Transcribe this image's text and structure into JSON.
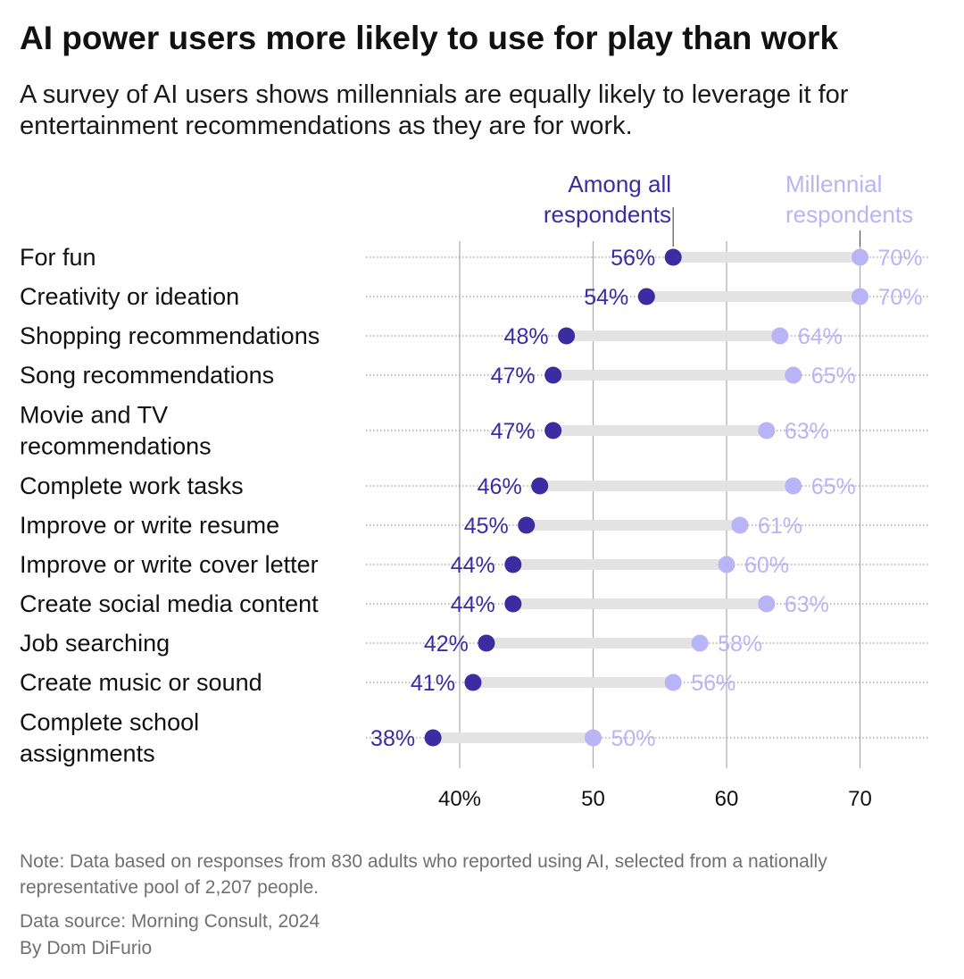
{
  "title": "AI power users more likely to use for play than work",
  "subtitle": "A survey of AI users shows millennials are equally likely to leverage it for entertainment recommendations as they are for work.",
  "note": "Note: Data based on responses from 830 adults who reported using AI, selected from a nationally representative pool of 2,207 people.",
  "source": "Data source: Morning Consult, 2024",
  "byline": "By Dom DiFurio",
  "colors": {
    "all": "#3b2ca1",
    "millennial": "#b9b4f5",
    "bar": "#e3e3e3",
    "grid": "#aaaaaa",
    "text": "#111111"
  },
  "chart_data": {
    "type": "dot-range",
    "series": [
      {
        "name": "Among all respondents",
        "label_lines": [
          "Among all",
          "respondents"
        ],
        "values": [
          56,
          54,
          48,
          47,
          47,
          46,
          45,
          44,
          44,
          42,
          41,
          38
        ]
      },
      {
        "name": "Millennial respondents",
        "label_lines": [
          "Millennial",
          "respondents"
        ],
        "values": [
          70,
          70,
          64,
          65,
          63,
          65,
          61,
          60,
          63,
          58,
          56,
          50
        ]
      }
    ],
    "categories": [
      [
        "For fun"
      ],
      [
        "Creativity or ideation"
      ],
      [
        "Shopping recommendations"
      ],
      [
        "Song recommendations"
      ],
      [
        "Movie and TV",
        "recommendations"
      ],
      [
        "Complete work tasks"
      ],
      [
        "Improve or write resume"
      ],
      [
        "Improve or write cover letter"
      ],
      [
        "Create social media content"
      ],
      [
        "Job searching"
      ],
      [
        "Create music or sound"
      ],
      [
        "Complete school",
        "assignments"
      ]
    ],
    "x_ticks": [
      40,
      50,
      60,
      70
    ],
    "x_tick_labels": [
      "40%",
      "50",
      "60",
      "70"
    ],
    "xlim": [
      33.6,
      75.7
    ],
    "value_suffix": "%"
  }
}
